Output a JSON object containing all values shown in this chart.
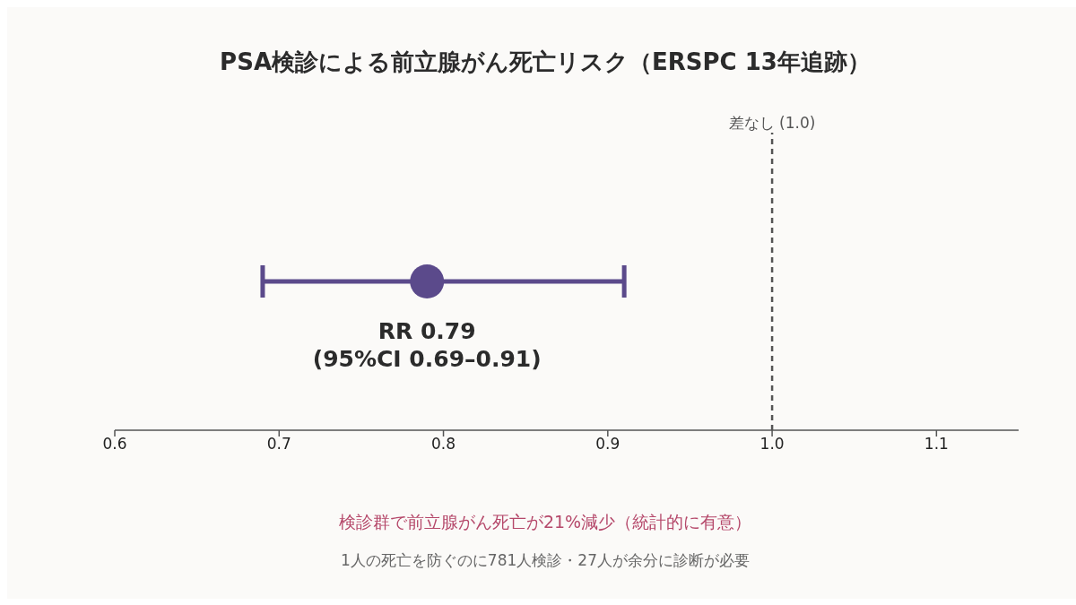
{
  "chart_data": {
    "type": "scatter",
    "title": "PSA検診による前立腺がん死亡リスク（ERSPC 13年追跡）",
    "orientation": "horizontal",
    "categories": [
      null
    ],
    "series": [
      {
        "color": "#5b4a8b",
        "values": [
          0.79
        ],
        "errors": [
          [
            0.69,
            0.91
          ]
        ]
      }
    ],
    "marker": "circle",
    "xlim": [
      0.6,
      1.15
    ],
    "xticks": [
      0.6,
      0.7,
      0.8,
      0.9,
      {
        "value": 1,
        "label": "1.0"
      },
      1.1
    ],
    "tick_labels": "x",
    "ref_lines": [
      {
        "axis": "x",
        "value": 1,
        "label": "差なし (1.0)",
        "color": "#555555",
        "line_style": "dashed"
      }
    ],
    "annotations": [
      "RR 0.79\n(95%CI 0.69–0.91)",
      "検診群で前立腺がん死亡が21%減少（統計的に有意）",
      "1人の死亡を防ぐのに781人検診・27人が余分に診断が必要"
    ]
  }
}
